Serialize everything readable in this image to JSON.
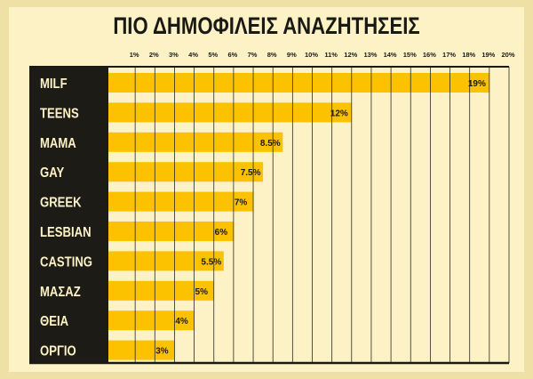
{
  "chart_data": {
    "type": "bar",
    "orientation": "horizontal",
    "title": "ΠΙΟ ΔΗΜΟΦΙΛΕΙΣ ΑΝΑΖΗΤΗΣΕΙΣ",
    "categories": [
      "MILF",
      "TEENS",
      "MAMA",
      "GAY",
      "GREEK",
      "LESBIAN",
      "CASTING",
      "ΜΑΣΑΖ",
      "ΘΕΙΑ",
      "ΟΡΓΙΟ"
    ],
    "values": [
      19,
      12,
      8.5,
      7.5,
      7,
      6,
      5.5,
      5,
      4,
      3
    ],
    "data_labels": [
      "19%",
      "12%",
      "8.5%",
      "7.5%",
      "7%",
      "6%",
      "5.5%",
      "5%",
      "4%",
      "3%"
    ],
    "xlim": [
      0,
      20
    ],
    "x_ticks": [
      "1%",
      "2%",
      "3%",
      "4%",
      "5%",
      "6%",
      "7%",
      "8%",
      "9%",
      "10%",
      "11%",
      "12%",
      "13%",
      "14%",
      "15%",
      "16%",
      "17%",
      "18%",
      "19%",
      "20%"
    ],
    "tick_position": "top",
    "grid": true,
    "colors": {
      "bar": "#fcc200",
      "label_column": "#1c1b16",
      "background": "#fdf2c6",
      "text": "#1a1a14"
    }
  }
}
